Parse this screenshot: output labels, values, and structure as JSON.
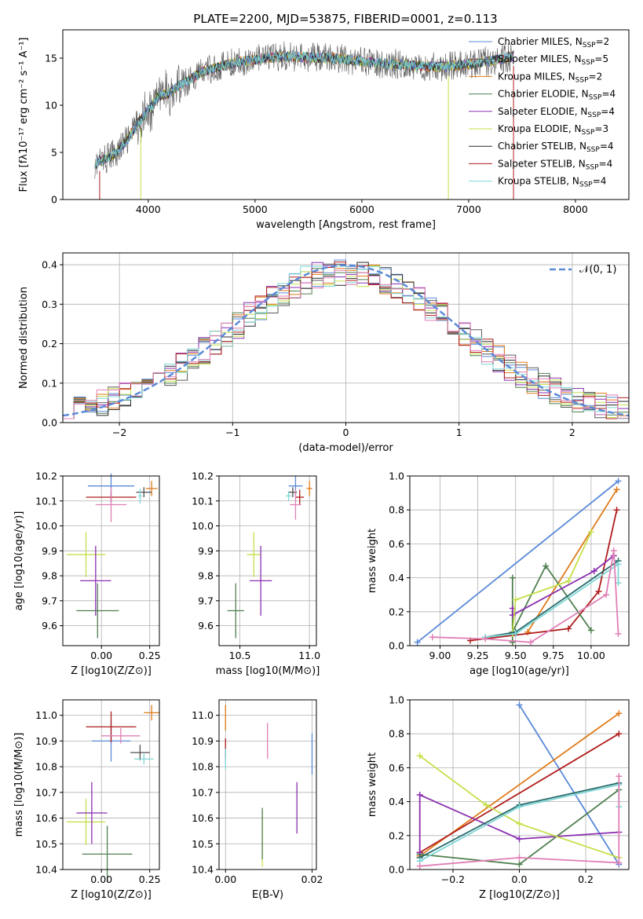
{
  "page_title": "PLATE=2200, MJD=53875, FIBERID=0001, z=0.113",
  "colors": {
    "blue": "#5b8ad8",
    "orange": "#e07b1a",
    "red": "#b01c1c",
    "green": "#4f7f4f",
    "purple": "#8b2fb0",
    "yellow": "#c5e04a",
    "gray": "#5a5a5a",
    "cyan": "#7fd6d6",
    "pink": "#e07fb6",
    "darkteal": "#2a6b6b",
    "lightgray": "#8a8a8a"
  },
  "chart_data": [
    {
      "id": "spectrum",
      "type": "line",
      "title": "PLATE=2200, MJD=53875, FIBERID=0001, z=0.113",
      "xlabel": "wavelength [Angstrom, rest frame]",
      "ylabel": "Flux [fλ10⁻¹⁷ erg cm⁻² s⁻¹ A⁻¹]",
      "xlim": [
        3200,
        8500
      ],
      "ylim": [
        0,
        18
      ],
      "xticks": [
        "4000",
        "5000",
        "6000",
        "7000",
        "8000"
      ],
      "yticks": [
        "0",
        "5",
        "10",
        "15"
      ],
      "grid": false,
      "legend_position": "right",
      "legend": [
        {
          "label": "Chabrier MILES, N_SSP=2",
          "color": "#5b8ad8"
        },
        {
          "label": "Salpeter MILES, N_SSP=5",
          "color": "#5a5a5a"
        },
        {
          "label": "Kroupa MILES, N_SSP=2",
          "color": "#e07b1a"
        },
        {
          "label": "Chabrier ELODIE, N_SSP=4",
          "color": "#4f7f4f"
        },
        {
          "label": "Salpeter ELODIE, N_SSP=4",
          "color": "#8b2fb0"
        },
        {
          "label": "Kroupa ELODIE, N_SSP=3",
          "color": "#c5e04a"
        },
        {
          "label": "Chabrier STELIB, N_SSP=4",
          "color": "#2a2a2a"
        },
        {
          "label": "Salpeter STELIB, N_SSP=4",
          "color": "#b01c1c"
        },
        {
          "label": "Kroupa STELIB, N_SSP=4",
          "color": "#7fd6d6"
        }
      ],
      "continuum": {
        "x": [
          3500,
          3600,
          3700,
          3800,
          3900,
          4000,
          4100,
          4200,
          4300,
          4400,
          4500,
          4700,
          4900,
          5100,
          5300,
          5500,
          5700,
          5900,
          6100,
          6300,
          6500,
          6700,
          6900,
          7100,
          7300,
          7420
        ],
        "y": [
          3.8,
          4.3,
          5.0,
          6.3,
          8.0,
          9.5,
          11.0,
          11.3,
          12.2,
          12.8,
          13.5,
          14.2,
          14.7,
          15.0,
          15.2,
          15.1,
          15.0,
          14.8,
          14.5,
          14.4,
          14.2,
          14.1,
          14.2,
          14.5,
          14.9,
          15.2
        ]
      }
    },
    {
      "id": "residuals",
      "type": "histogram",
      "xlabel": "(data-model)/error",
      "ylabel": "Normed distribution",
      "xlim": [
        -2.5,
        2.5
      ],
      "ylim": [
        0,
        0.43
      ],
      "xticks": [
        "−2",
        "−1",
        "0",
        "1",
        "2"
      ],
      "yticks": [
        "0.0",
        "0.1",
        "0.2",
        "0.3",
        "0.4"
      ],
      "grid": true,
      "legend_position": "top-right",
      "legend": [
        {
          "label": "𝒩(0, 1)",
          "color": "#5b8ad8"
        }
      ],
      "reference_curve": "normal(0,1)"
    },
    {
      "id": "age-vs-z",
      "type": "scatter",
      "xlabel": "Z [log10(Z/Z⊙)]",
      "ylabel": "age  [log10(age/yr)]",
      "xlim": [
        -0.2,
        0.3
      ],
      "ylim": [
        9.52,
        10.2
      ],
      "xticks": [
        "0.00",
        "0.25"
      ],
      "yticks": [
        "9.6",
        "9.7",
        "9.8",
        "9.9",
        "10.0",
        "10.1",
        "10.2"
      ],
      "grid": true,
      "points": [
        {
          "x": 0.05,
          "y": 10.16,
          "xerr": 0.12,
          "yerr": 0.05,
          "color": "#5b8ad8"
        },
        {
          "x": 0.26,
          "y": 10.15,
          "xerr": 0.03,
          "yerr": 0.03,
          "color": "#e07b1a"
        },
        {
          "x": 0.22,
          "y": 10.135,
          "xerr": 0.04,
          "yerr": 0.02,
          "color": "#4f4f4f"
        },
        {
          "x": 0.05,
          "y": 10.115,
          "xerr": 0.13,
          "yerr": 0.02,
          "color": "#b01c1c"
        },
        {
          "x": 0.2,
          "y": 10.12,
          "xerr": 0.01,
          "yerr": 0.03,
          "color": "#7fd6d6"
        },
        {
          "x": 0.05,
          "y": 10.085,
          "xerr": 0.08,
          "yerr": 0.07,
          "color": "#e07fb6"
        },
        {
          "x": -0.08,
          "y": 9.885,
          "xerr": 0.1,
          "yerr": 0.09,
          "color": "#c5e04a"
        },
        {
          "x": -0.03,
          "y": 9.78,
          "xerr": 0.08,
          "yerr": 0.14,
          "color": "#8b2fb0"
        },
        {
          "x": -0.02,
          "y": 9.66,
          "xerr": 0.11,
          "yerr": 0.11,
          "color": "#4f7f4f"
        }
      ]
    },
    {
      "id": "age-vs-mass",
      "type": "scatter",
      "xlabel": "mass [log10(M/M⊙)]",
      "ylabel": "",
      "xlim": [
        10.35,
        11.05
      ],
      "ylim": [
        9.52,
        10.2
      ],
      "xticks": [
        "10.5",
        "11.0"
      ],
      "yticks": [
        "9.6",
        "9.7",
        "9.8",
        "9.9",
        "10.0",
        "10.1",
        "10.2"
      ],
      "grid": true,
      "points": [
        {
          "x": 10.9,
          "y": 10.16,
          "xerr": 0.05,
          "yerr": 0.04,
          "color": "#5b8ad8"
        },
        {
          "x": 11.0,
          "y": 10.15,
          "xerr": 0.02,
          "yerr": 0.03,
          "color": "#e07b1a"
        },
        {
          "x": 10.88,
          "y": 10.135,
          "xerr": 0.03,
          "yerr": 0.02,
          "color": "#4f4f4f"
        },
        {
          "x": 10.93,
          "y": 10.115,
          "xerr": 0.03,
          "yerr": 0.03,
          "color": "#b01c1c"
        },
        {
          "x": 10.85,
          "y": 10.12,
          "xerr": 0.02,
          "yerr": 0.02,
          "color": "#7fd6d6"
        },
        {
          "x": 10.9,
          "y": 10.085,
          "xerr": 0.04,
          "yerr": 0.06,
          "color": "#e07fb6"
        },
        {
          "x": 10.6,
          "y": 9.885,
          "xerr": 0.05,
          "yerr": 0.09,
          "color": "#c5e04a"
        },
        {
          "x": 10.65,
          "y": 9.78,
          "xerr": 0.08,
          "yerr": 0.14,
          "color": "#8b2fb0"
        },
        {
          "x": 10.47,
          "y": 9.66,
          "xerr": 0.06,
          "yerr": 0.11,
          "color": "#4f7f4f"
        }
      ]
    },
    {
      "id": "weight-vs-age",
      "type": "line",
      "xlabel": "age  [log10(age/yr)]",
      "ylabel": "mass weight",
      "xlim": [
        8.8,
        10.25
      ],
      "ylim": [
        0,
        1.0
      ],
      "xticks": [
        "9.00",
        "9.25",
        "9.50",
        "9.75",
        "10.00"
      ],
      "yticks": [
        "0.0",
        "0.2",
        "0.4",
        "0.6",
        "0.8",
        "1.0"
      ],
      "grid": true,
      "series": [
        {
          "color": "#5b8ad8",
          "x": [
            8.85,
            10.18
          ],
          "y": [
            0.02,
            0.97
          ]
        },
        {
          "color": "#e07b1a",
          "x": [
            9.58,
            10.17
          ],
          "y": [
            0.08,
            0.92
          ]
        },
        {
          "color": "#b01c1c",
          "x": [
            9.2,
            9.85,
            10.05,
            10.17
          ],
          "y": [
            0.03,
            0.1,
            0.32,
            0.8
          ]
        },
        {
          "color": "#4f7f4f",
          "x": [
            9.48,
            9.48,
            9.48,
            9.7,
            10.0
          ],
          "y": [
            0.4,
            0.02,
            0.08,
            0.47,
            0.09
          ]
        },
        {
          "color": "#8b2fb0",
          "x": [
            9.48,
            9.48,
            10.02,
            10.15
          ],
          "y": [
            0.22,
            0.18,
            0.44,
            0.53
          ]
        },
        {
          "color": "#c5e04a",
          "x": [
            9.48,
            9.5,
            9.85,
            10.0
          ],
          "y": [
            0.07,
            0.27,
            0.38,
            0.67
          ]
        },
        {
          "color": "#2a6b6b",
          "x": [
            9.3,
            9.5,
            10.18
          ],
          "y": [
            0.05,
            0.08,
            0.5
          ]
        },
        {
          "color": "#7fd6d6",
          "x": [
            9.3,
            9.5,
            10.18,
            10.18
          ],
          "y": [
            0.05,
            0.07,
            0.48,
            0.37
          ]
        },
        {
          "color": "#e07fb6",
          "x": [
            8.95,
            9.3,
            9.6,
            10.1,
            10.15,
            10.18
          ],
          "y": [
            0.05,
            0.04,
            0.02,
            0.3,
            0.56,
            0.07
          ]
        }
      ]
    },
    {
      "id": "mass-vs-z",
      "type": "scatter",
      "xlabel": "Z [log10(Z/Z⊙)]",
      "ylabel": "mass [log10(M/M⊙)]",
      "xlim": [
        -0.2,
        0.3
      ],
      "ylim": [
        10.4,
        11.06
      ],
      "xticks": [
        "0.00",
        "0.25"
      ],
      "yticks": [
        "10.4",
        "10.5",
        "10.6",
        "10.7",
        "10.8",
        "10.9",
        "11.0"
      ],
      "grid": true,
      "points": [
        {
          "x": 0.05,
          "y": 10.9,
          "xerr": 0.1,
          "yerr": 0.08,
          "color": "#5b8ad8"
        },
        {
          "x": 0.26,
          "y": 11.01,
          "xerr": 0.04,
          "yerr": 0.03,
          "color": "#e07b1a"
        },
        {
          "x": 0.2,
          "y": 10.855,
          "xerr": 0.05,
          "yerr": 0.03,
          "color": "#4f4f4f"
        },
        {
          "x": 0.05,
          "y": 10.955,
          "xerr": 0.13,
          "yerr": 0.06,
          "color": "#b01c1c"
        },
        {
          "x": 0.22,
          "y": 10.83,
          "xerr": 0.05,
          "yerr": 0.02,
          "color": "#7fd6d6"
        },
        {
          "x": 0.1,
          "y": 10.92,
          "xerr": 0.1,
          "yerr": 0.03,
          "color": "#e07fb6"
        },
        {
          "x": -0.08,
          "y": 10.585,
          "xerr": 0.1,
          "yerr": 0.09,
          "color": "#c5e04a"
        },
        {
          "x": -0.05,
          "y": 10.62,
          "xerr": 0.08,
          "yerr": 0.12,
          "color": "#8b2fb0"
        },
        {
          "x": 0.03,
          "y": 10.46,
          "xerr": 0.13,
          "yerr": 0.11,
          "color": "#4f7f4f"
        }
      ]
    },
    {
      "id": "mass-vs-ebv",
      "type": "scatter",
      "xlabel": "E(B-V)",
      "ylabel": "",
      "xlim": [
        -0.0015,
        0.021
      ],
      "ylim": [
        10.4,
        11.06
      ],
      "xticks": [
        "0.00",
        "0.02"
      ],
      "yticks": [
        "10.4",
        "10.5",
        "10.6",
        "10.7",
        "10.8",
        "10.9",
        "11.0"
      ],
      "grid": true,
      "points": [
        {
          "x": 0.02,
          "y": 10.85,
          "xerr": 0,
          "yerr": 0.08,
          "color": "#5b8ad8"
        },
        {
          "x": 0.0,
          "y": 10.99,
          "xerr": 0,
          "yerr": 0.05,
          "color": "#e07b1a"
        },
        {
          "x": 0.0,
          "y": 10.87,
          "xerr": 0,
          "yerr": 0.04,
          "color": "#b01c1c"
        },
        {
          "x": 0.0,
          "y": 10.83,
          "xerr": 0,
          "yerr": 0.04,
          "color": "#7fd6d6"
        },
        {
          "x": 0.0097,
          "y": 10.9,
          "xerr": 0,
          "yerr": 0.07,
          "color": "#e07fb6"
        },
        {
          "x": 0.0165,
          "y": 10.64,
          "xerr": 0,
          "yerr": 0.1,
          "color": "#8b2fb0"
        },
        {
          "x": 0.0085,
          "y": 10.52,
          "xerr": 0,
          "yerr": 0.11,
          "color": "#c5e04a"
        },
        {
          "x": 0.0085,
          "y": 10.54,
          "xerr": 0,
          "yerr": 0.1,
          "color": "#4f7f4f"
        }
      ]
    },
    {
      "id": "weight-vs-z",
      "type": "line",
      "xlabel": "Z [log10(Z/Z⊙)]",
      "ylabel": "mass weight",
      "xlim": [
        -0.33,
        0.33
      ],
      "ylim": [
        0,
        1.0
      ],
      "xticks": [
        "−0.2",
        "0.0",
        "0.2"
      ],
      "yticks": [
        "0.0",
        "0.2",
        "0.4",
        "0.6",
        "0.8",
        "1.0"
      ],
      "grid": true,
      "series": [
        {
          "color": "#5b8ad8",
          "x": [
            0.0,
            0.3
          ],
          "y": [
            0.97,
            0.03
          ]
        },
        {
          "color": "#e07b1a",
          "x": [
            -0.3,
            0.3
          ],
          "y": [
            0.08,
            0.92
          ]
        },
        {
          "color": "#b01c1c",
          "x": [
            -0.3,
            0.3
          ],
          "y": [
            0.1,
            0.8
          ]
        },
        {
          "color": "#4f7f4f",
          "x": [
            -0.3,
            0.0,
            0.3
          ],
          "y": [
            0.09,
            0.03,
            0.47
          ]
        },
        {
          "color": "#8b2fb0",
          "x": [
            -0.3,
            -0.3,
            0.0,
            0.3
          ],
          "y": [
            0.1,
            0.44,
            0.18,
            0.22
          ]
        },
        {
          "color": "#c5e04a",
          "x": [
            -0.3,
            -0.1,
            0.0,
            0.3
          ],
          "y": [
            0.67,
            0.38,
            0.27,
            0.07
          ]
        },
        {
          "color": "#2a6b6b",
          "x": [
            -0.3,
            0.0,
            0.3
          ],
          "y": [
            0.07,
            0.38,
            0.51
          ]
        },
        {
          "color": "#7fd6d6",
          "x": [
            -0.3,
            0.0,
            0.3,
            0.3
          ],
          "y": [
            0.05,
            0.37,
            0.5,
            0.37
          ]
        },
        {
          "color": "#e07fb6",
          "x": [
            -0.3,
            0.0,
            0.3,
            0.3
          ],
          "y": [
            0.02,
            0.07,
            0.04,
            0.55
          ]
        }
      ]
    }
  ]
}
